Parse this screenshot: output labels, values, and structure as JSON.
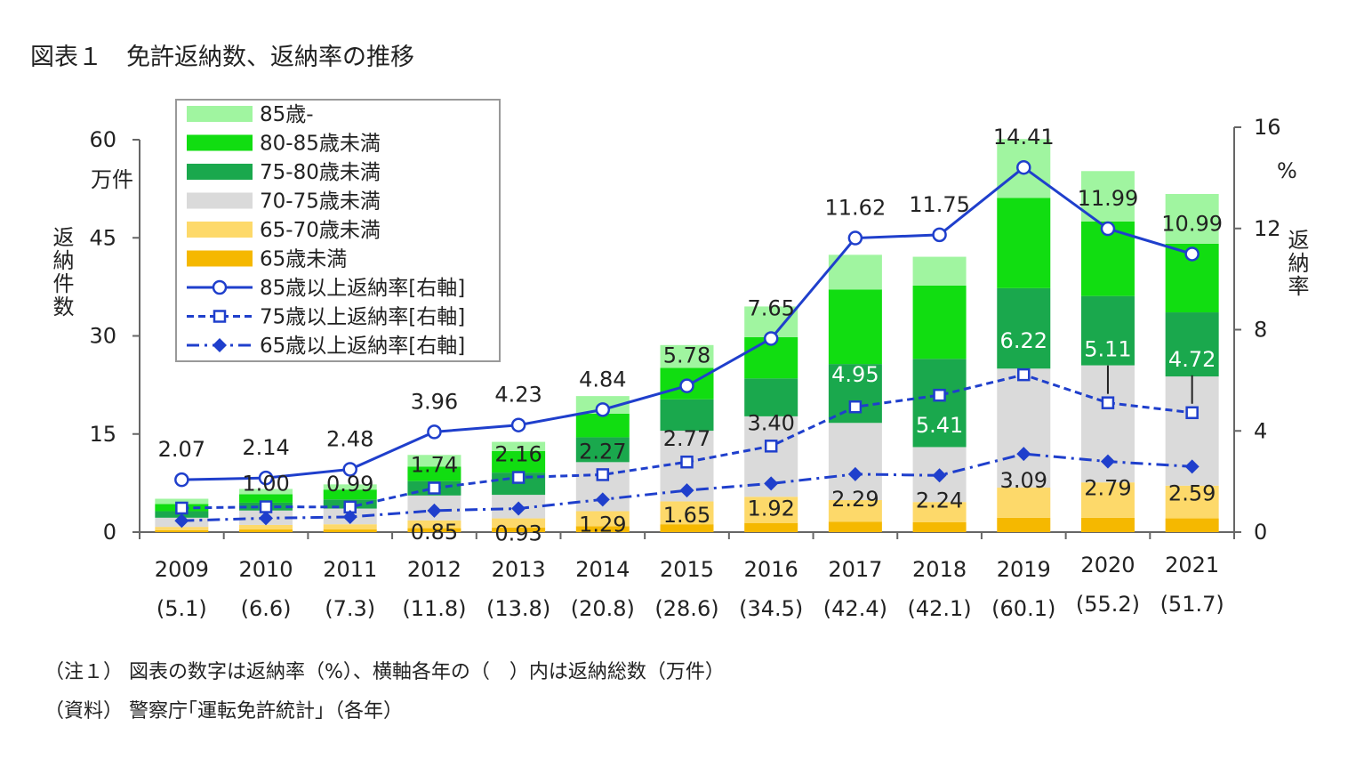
{
  "title": "図表１　免許返納数、返納率の推移",
  "notes": [
    "（注１） 図表の数字は返納率（%）、横軸各年の（　）内は返納総数（万件）",
    "（資料） 警察庁｢運転免許統計｣（各年）"
  ],
  "chart_data": {
    "type": "bar",
    "stacked": true,
    "categories": [
      "2009",
      "2010",
      "2011",
      "2012",
      "2013",
      "2014",
      "2015",
      "2016",
      "2017",
      "2018",
      "2019",
      "2020",
      "2021"
    ],
    "category_totals": [
      "(5.1)",
      "(6.6)",
      "(7.3)",
      "(11.8)",
      "(13.8)",
      "(20.8)",
      "(28.6)",
      "(34.5)",
      "(42.4)",
      "(42.1)",
      "(60.1)",
      "(55.2)",
      "(51.7)"
    ],
    "left_axis": {
      "label": "返納件数",
      "unit": "万件",
      "ylim": [
        0,
        60
      ],
      "ticks": [
        0,
        15,
        30,
        45,
        60
      ]
    },
    "right_axis": {
      "label": "返納率",
      "unit": "%",
      "ylim": [
        0,
        16
      ],
      "ticks": [
        0,
        4,
        8,
        12,
        16
      ]
    },
    "series": [
      {
        "name": "65歳未満",
        "color": "#f5b800",
        "axis": "left",
        "values": [
          0.3,
          0.4,
          0.4,
          0.6,
          0.7,
          0.9,
          1.2,
          1.4,
          1.6,
          1.5,
          2.2,
          2.2,
          2.1
        ]
      },
      {
        "name": "65-70歳未満",
        "color": "#fdd96a",
        "axis": "left",
        "values": [
          0.5,
          0.7,
          0.8,
          1.2,
          1.4,
          2.3,
          3.5,
          4.0,
          3.3,
          3.1,
          4.6,
          5.4,
          5.0
        ]
      },
      {
        "name": "70-75歳未満",
        "color": "#dadada",
        "axis": "left",
        "values": [
          1.4,
          2.2,
          2.4,
          3.8,
          3.6,
          7.5,
          10.8,
          12.3,
          11.8,
          8.4,
          18.2,
          17.9,
          16.7
        ]
      },
      {
        "name": "75-80歳未満",
        "color": "#1aa84d",
        "axis": "left",
        "values": [
          1.0,
          1.2,
          1.4,
          2.2,
          3.4,
          3.8,
          4.8,
          5.8,
          9.0,
          13.5,
          12.3,
          10.6,
          9.8
        ]
      },
      {
        "name": "80-85歳未満",
        "color": "#11dd11",
        "axis": "left",
        "values": [
          1.1,
          1.3,
          1.5,
          2.2,
          3.3,
          3.6,
          4.8,
          6.3,
          11.4,
          11.2,
          13.8,
          11.4,
          10.5
        ]
      },
      {
        "name": "85歳-",
        "color": "#a0f5a0",
        "axis": "left",
        "values": [
          0.8,
          0.8,
          0.8,
          1.8,
          1.4,
          2.7,
          3.5,
          4.7,
          5.3,
          4.4,
          9.0,
          7.7,
          7.6
        ]
      },
      {
        "name": "85歳以上返納率[右軸]",
        "type": "line",
        "style": "solid-circle",
        "axis": "right",
        "values": [
          2.07,
          2.14,
          2.48,
          3.96,
          4.23,
          4.84,
          5.78,
          7.65,
          11.62,
          11.75,
          14.41,
          11.99,
          10.99
        ],
        "labels": [
          "2.07",
          "2.14",
          "2.48",
          "3.96",
          "4.23",
          "4.84",
          "5.78",
          "7.65",
          "11.62",
          "11.75",
          "14.41",
          "11.99",
          "10.99"
        ]
      },
      {
        "name": "75歳以上返納率[右軸]",
        "type": "line",
        "style": "dashed-square",
        "axis": "right",
        "values": [
          0.95,
          1.0,
          0.99,
          1.74,
          2.16,
          2.27,
          2.77,
          3.4,
          4.95,
          5.41,
          6.22,
          5.11,
          4.72
        ],
        "labels": [
          "",
          "1.00",
          "0.99",
          "1.74",
          "2.16",
          "2.27",
          "2.77",
          "3.40",
          "4.95",
          "5.41",
          "6.22",
          "5.11",
          "4.72"
        ]
      },
      {
        "name": "65歳以上返納率[右軸]",
        "type": "line",
        "style": "dashdot-diamond",
        "axis": "right",
        "values": [
          0.45,
          0.55,
          0.6,
          0.85,
          0.93,
          1.29,
          1.65,
          1.92,
          2.29,
          2.24,
          3.09,
          2.79,
          2.59
        ],
        "labels": [
          "",
          "",
          "",
          "0.85",
          "0.93",
          "1.29",
          "1.65",
          "1.92",
          "2.29",
          "2.24",
          "3.09",
          "2.79",
          "2.59"
        ]
      }
    ],
    "legend_order": [
      "85歳-",
      "80-85歳未満",
      "75-80歳未満",
      "70-75歳未満",
      "65-70歳未満",
      "65歳未満",
      "85歳以上返納率[右軸]",
      "75歳以上返納率[右軸]",
      "65歳以上返納率[右軸]"
    ],
    "legend_position": "top-left",
    "line_color": "#1f3fcc",
    "rate_label_color_light": "#ffffff",
    "rate_label_color_dark": "#222222",
    "grid": false
  }
}
